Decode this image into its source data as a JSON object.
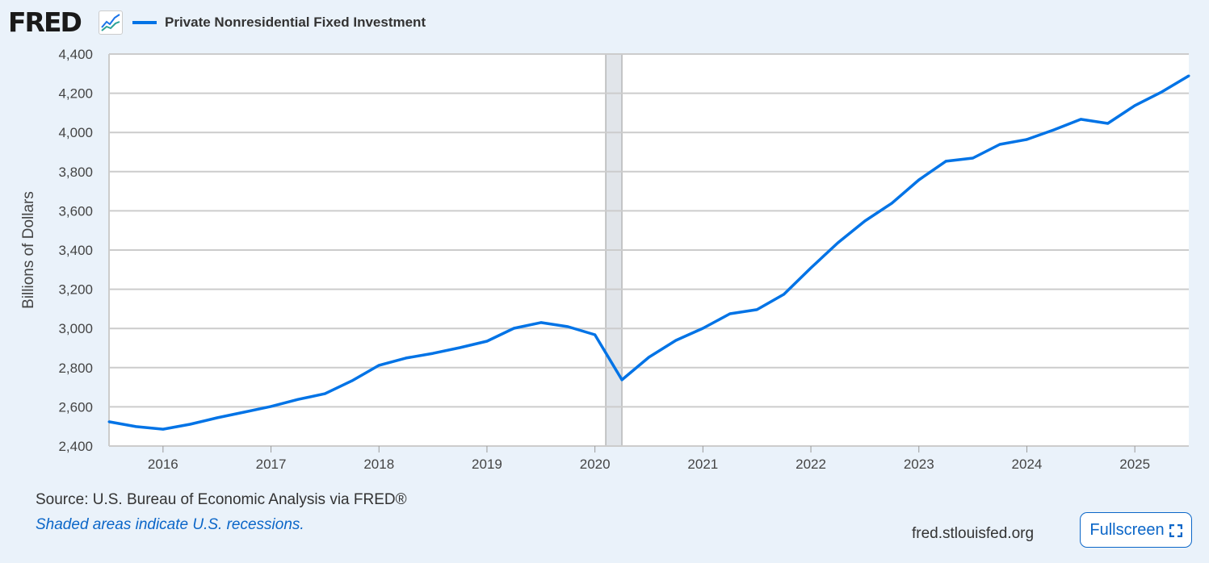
{
  "header": {
    "logo": "FRED",
    "legend_label": "Private Nonresidential Fixed Investment"
  },
  "footer": {
    "source": "Source: U.S. Bureau of Economic Analysis via FRED®",
    "note": "Shaded areas indicate U.S. recessions.",
    "site": "fred.stlouisfed.org",
    "fullscreen_label": "Fullscreen"
  },
  "colors": {
    "series": "#0073e6",
    "recession": "#e1e5ea",
    "grid": "#cccccc"
  },
  "chart_data": {
    "type": "line",
    "title": "Private Nonresidential Fixed Investment",
    "xlabel": "",
    "ylabel": "Billions of Dollars",
    "xlim": [
      2015.5,
      2025.5
    ],
    "ylim": [
      2400,
      4400
    ],
    "grid": true,
    "yticks": [
      2400,
      2600,
      2800,
      3000,
      3200,
      3400,
      3600,
      3800,
      4000,
      4200,
      4400
    ],
    "ytick_labels": [
      "2,400",
      "2,600",
      "2,800",
      "3,000",
      "3,200",
      "3,400",
      "3,600",
      "3,800",
      "4,000",
      "4,200",
      "4,400"
    ],
    "xticks": [
      2016,
      2017,
      2018,
      2019,
      2020,
      2021,
      2022,
      2023,
      2024,
      2025
    ],
    "xtick_labels": [
      "2016",
      "2017",
      "2018",
      "2019",
      "2020",
      "2021",
      "2022",
      "2023",
      "2024",
      "2025"
    ],
    "recessions": [
      [
        2020.1,
        2020.25
      ]
    ],
    "series": [
      {
        "name": "Private Nonresidential Fixed Investment",
        "x": [
          2015.5,
          2015.75,
          2016,
          2016.25,
          2016.5,
          2016.75,
          2017,
          2017.25,
          2017.5,
          2017.75,
          2018,
          2018.25,
          2018.5,
          2018.75,
          2019,
          2019.25,
          2019.5,
          2019.75,
          2020,
          2020.25,
          2020.5,
          2020.75,
          2021,
          2021.25,
          2021.5,
          2021.75,
          2022,
          2022.25,
          2022.5,
          2022.75,
          2023,
          2023.25,
          2023.5,
          2023.75,
          2024,
          2024.25,
          2024.5,
          2024.75,
          2025,
          2025.25,
          2025.5
        ],
        "values": [
          2524,
          2499,
          2486,
          2511,
          2544,
          2573,
          2602,
          2638,
          2667,
          2733,
          2812,
          2849,
          2873,
          2902,
          2935,
          3001,
          3030,
          3009,
          2968,
          2738,
          2853,
          2939,
          3001,
          3075,
          3096,
          3174,
          3309,
          3437,
          3548,
          3639,
          3758,
          3853,
          3869,
          3939,
          3964,
          4013,
          4067,
          4046,
          4137,
          4207,
          4289
        ]
      }
    ]
  }
}
